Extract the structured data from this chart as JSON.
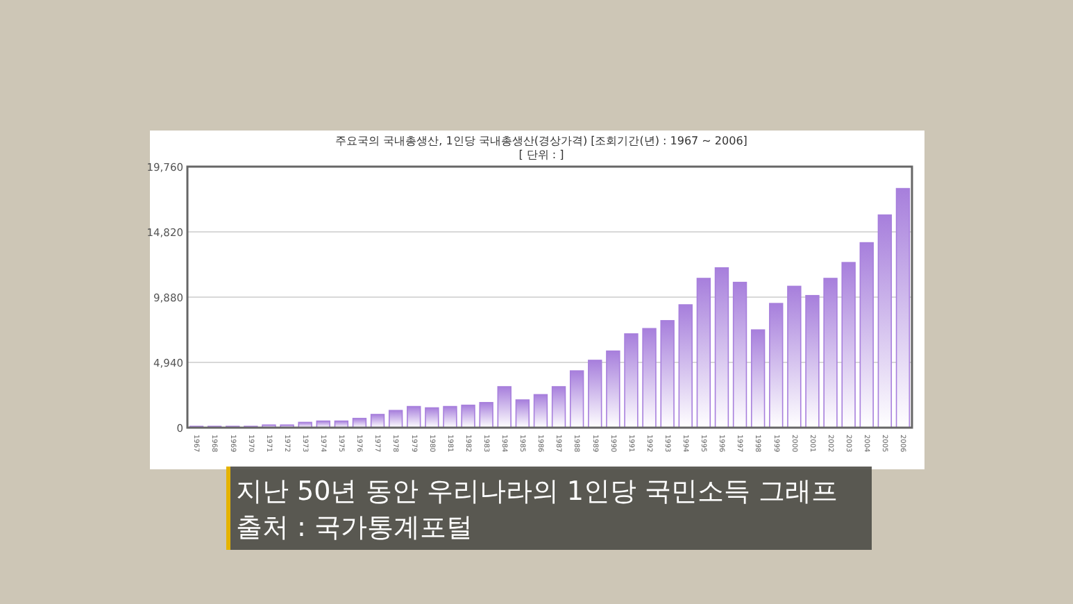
{
  "chart_data": {
    "type": "bar",
    "title": "주요국의 국내총생산, 1인당 국내총생산(경상가격) [조회기간(년) : 1967 ~ 2006]",
    "subtitle": "[ 단위 : ]",
    "categories": [
      "1967",
      "1968",
      "1969",
      "1970",
      "1971",
      "1972",
      "1973",
      "1974",
      "1975",
      "1976",
      "1977",
      "1978",
      "1979",
      "1980",
      "1981",
      "1982",
      "1983",
      "1984",
      "1985",
      "1986",
      "1987",
      "1988",
      "1989",
      "1990",
      "1991",
      "1992",
      "1993",
      "1994",
      "1995",
      "1996",
      "1997",
      "1998",
      "1999",
      "2000",
      "2001",
      "2002",
      "2003",
      "2004",
      "2005",
      "2006"
    ],
    "values": [
      100,
      100,
      100,
      100,
      200,
      200,
      400,
      500,
      500,
      700,
      1000,
      1300,
      1600,
      1500,
      1600,
      1700,
      1900,
      3100,
      2100,
      2500,
      3100,
      4300,
      5100,
      5800,
      7100,
      7500,
      8100,
      9300,
      11300,
      12100,
      11000,
      7400,
      9400,
      10700,
      10000,
      11300,
      12500,
      14000,
      16100,
      18100
    ],
    "color": "#a77fdc",
    "ylim": [
      0,
      19760
    ],
    "yticks": [
      0,
      {
        "value": 4940,
        "label": "4,940"
      },
      {
        "value": 9880,
        "label": "9,880"
      },
      {
        "value": 14820,
        "label": "14,820"
      },
      {
        "value": 19760,
        "label": "19,760"
      }
    ],
    "grid": "y",
    "annotations": [
      "지난 50년 동안 우리나라의 1인당 국민소득 그래프",
      "출처 : 국가통계포털"
    ]
  }
}
